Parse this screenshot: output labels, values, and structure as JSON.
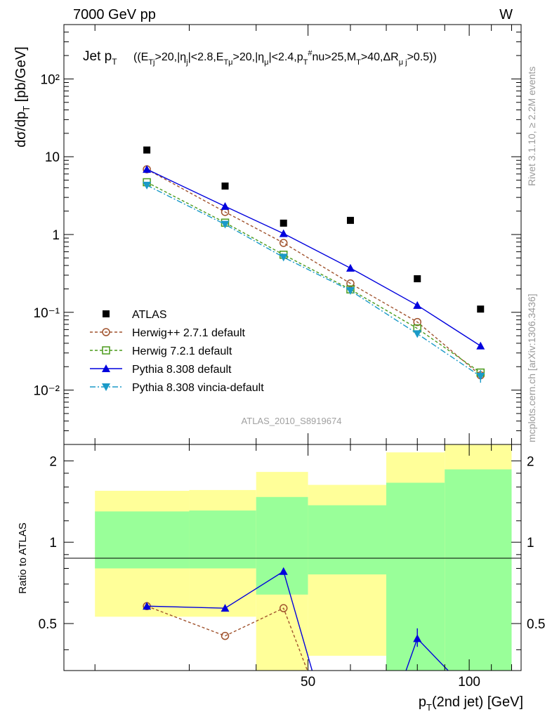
{
  "header": {
    "left": "7000 GeV pp",
    "right": "W"
  },
  "side_labels": {
    "rivet": "Rivet 3.1.10, ≥ 2.2M events",
    "mcplots": "mcplots.cern.ch [arXiv:1306.3436]"
  },
  "chart_data": [
    {
      "type": "line",
      "title": "Jet p_T ((E_Tj>20,|η_j|<2.8,E_Tμ>20,|η_μ|<2.4,p_T^#nu>25,M_T>40,ΔR_μj>0.5))",
      "ylabel": "dσ/dp_T [pb/GeV]",
      "yscale": "log",
      "ylim": [
        0.002,
        500
      ],
      "xlim": [
        17.5,
        125
      ],
      "watermark": "ATLAS_2010_S8919674",
      "legend_position": "bottom-left",
      "ytick_labels": [
        "10⁻²",
        "10⁻¹",
        "1",
        "10",
        "10²"
      ],
      "x": [
        25,
        35,
        45,
        60,
        80,
        105
      ],
      "series": [
        {
          "name": "ATLAS",
          "marker": "square",
          "color": "#000000",
          "values": [
            12.2,
            4.2,
            1.4,
            1.52,
            0.27,
            0.11
          ]
        },
        {
          "name": "Herwig++ 2.7.1 default",
          "marker": "circle-open",
          "dash": "4,3",
          "color": "#a0522d",
          "values": [
            6.9,
            1.95,
            0.78,
            0.235,
            0.075,
            0.0155
          ]
        },
        {
          "name": "Herwig 7.2.1 default",
          "marker": "square-open",
          "dash": "4,3",
          "color": "#4a9a1a",
          "values": [
            4.7,
            1.42,
            0.55,
            0.197,
            0.062,
            0.0168
          ]
        },
        {
          "name": "Pythia 8.308 default",
          "marker": "triangle-up",
          "dash": "",
          "color": "#0000dd",
          "values": [
            6.9,
            2.3,
            1.03,
            0.37,
            0.123,
            0.037
          ]
        },
        {
          "name": "Pythia 8.308 vincia-default",
          "marker": "triangle-down",
          "dash": "8,3,2,3",
          "color": "#1a9ac8",
          "values": [
            4.3,
            1.35,
            0.51,
            0.19,
            0.053,
            0.015
          ]
        }
      ]
    },
    {
      "type": "line",
      "title": "",
      "xlabel": "p_T(2nd jet) [GeV]",
      "ylabel": "Ratio to ATLAS",
      "ylim": [
        0.335,
        2.3
      ],
      "xlim": [
        17.5,
        125
      ],
      "ytick_labels": [
        "0.5",
        "1",
        "2"
      ],
      "xtick_labels": [
        "50",
        "100"
      ],
      "bands": [
        {
          "x": [
            20,
            30
          ],
          "outer": [
            0.53,
            1.55
          ],
          "inner": [
            0.8,
            1.3
          ]
        },
        {
          "x": [
            30,
            40
          ],
          "outer": [
            0.53,
            1.56
          ],
          "inner": [
            0.8,
            1.31
          ]
        },
        {
          "x": [
            40,
            50
          ],
          "outer": [
            0.3,
            1.82
          ],
          "inner": [
            0.64,
            1.47
          ]
        },
        {
          "x": [
            50,
            70
          ],
          "outer": [
            0.38,
            1.63
          ],
          "inner": [
            0.76,
            1.37
          ]
        },
        {
          "x": [
            70,
            90
          ],
          "outer": [
            0.3,
            2.15
          ],
          "inner": [
            0.3,
            1.66
          ]
        },
        {
          "x": [
            90,
            120
          ],
          "outer": [
            0.3,
            2.4
          ],
          "inner": [
            0.3,
            1.86
          ]
        }
      ],
      "series": [
        {
          "name": "Herwig++ 2.7.1 default",
          "marker": "circle-open",
          "dash": "4,3",
          "color": "#a0522d",
          "x": [
            25,
            35,
            45,
            50
          ],
          "values": [
            0.58,
            0.45,
            0.57,
            0.33
          ]
        },
        {
          "name": "Pythia 8.308 default",
          "marker": "triangle-up",
          "dash": "",
          "color": "#0000dd",
          "x": [
            25,
            35,
            45,
            51
          ],
          "values": [
            0.58,
            0.57,
            0.78,
            0.33
          ]
        },
        {
          "name": "Pythia 8.308 default (right)",
          "marker": "triangle-up",
          "dash": "",
          "color": "#0000dd",
          "x": [
            76,
            80,
            92
          ],
          "values": [
            0.33,
            0.44,
            0.33
          ]
        }
      ]
    }
  ]
}
